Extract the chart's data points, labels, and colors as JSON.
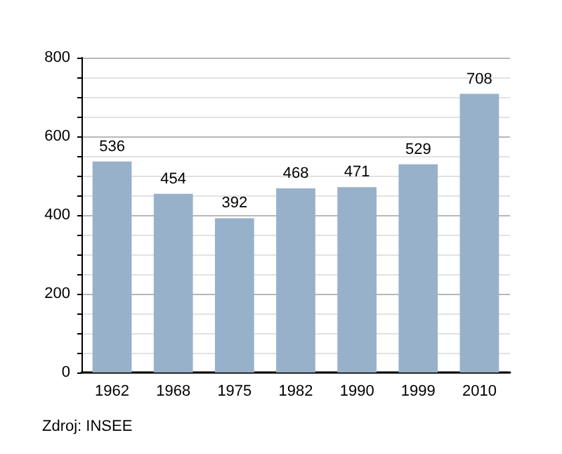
{
  "chart_data": {
    "type": "bar",
    "categories": [
      "1962",
      "1968",
      "1975",
      "1982",
      "1990",
      "1999",
      "2010"
    ],
    "values": [
      536,
      454,
      392,
      468,
      471,
      529,
      708
    ],
    "color": "#98b1cb",
    "data_labels": true,
    "ylim": [
      0,
      800
    ],
    "yticks": [
      0,
      {
        "value": 50,
        "label": null
      },
      {
        "value": 100,
        "label": null
      },
      {
        "value": 150,
        "label": null
      },
      200,
      {
        "value": 250,
        "label": null
      },
      {
        "value": 300,
        "label": null
      },
      {
        "value": 350,
        "label": null
      },
      400,
      {
        "value": 450,
        "label": null
      },
      {
        "value": 500,
        "label": null
      },
      {
        "value": 550,
        "label": null
      },
      600,
      {
        "value": 650,
        "label": null
      },
      {
        "value": 700,
        "label": null
      },
      {
        "value": 750,
        "label": null
      },
      800
    ],
    "grid": "y",
    "annotations": [
      "Zdroj: INSEE"
    ]
  }
}
